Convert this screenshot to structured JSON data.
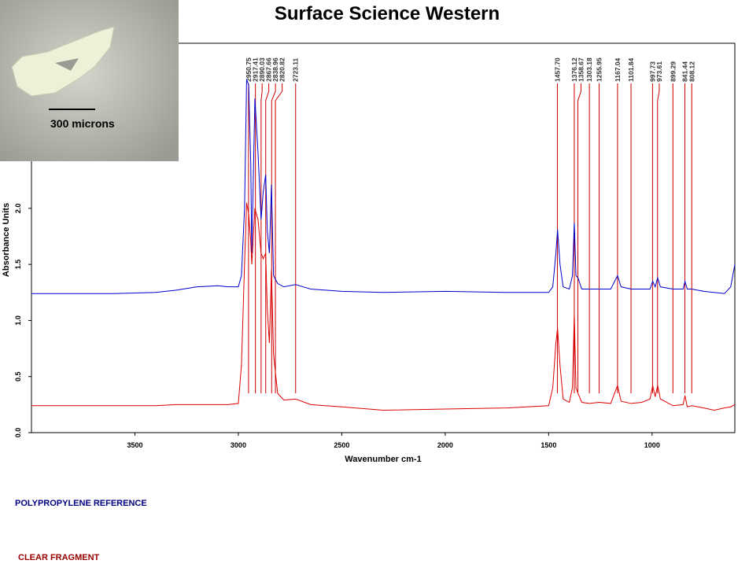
{
  "chart_data": {
    "type": "line",
    "title": "Surface Science Western",
    "x_label": "Wavenumber cm-1",
    "y_label": "Absorbance Units",
    "image_scale_label": "300 microns",
    "xlim": [
      4000,
      600
    ],
    "ylim": [
      0,
      3.5
    ],
    "xticks": [
      3500,
      3000,
      2500,
      2000,
      1500,
      1000
    ],
    "yticks": [
      {
        "value": 0,
        "label": "0.0"
      },
      0.5,
      {
        "value": 1,
        "label": "1.0"
      },
      1.5,
      {
        "value": 2,
        "label": "2.0"
      }
    ],
    "x": [
      4000,
      3800,
      3600,
      3400,
      3300,
      3200,
      3100,
      3050,
      3000,
      2985,
      2970,
      2960,
      2950,
      2940,
      2935,
      2920,
      2905,
      2890,
      2880,
      2868,
      2860,
      2850,
      2840,
      2830,
      2810,
      2780,
      2723,
      2650,
      2500,
      2300,
      2000,
      1700,
      1500,
      1480,
      1465,
      1457,
      1445,
      1430,
      1400,
      1385,
      1376,
      1368,
      1358,
      1340,
      1303,
      1256,
      1200,
      1167,
      1150,
      1101,
      1050,
      1010,
      997,
      985,
      973,
      960,
      899,
      850,
      841,
      830,
      808,
      750,
      700,
      650,
      620,
      600
    ],
    "series": [
      {
        "name": "POLYPROPYLENE REFERENCE",
        "color": "#0000cc",
        "legend_color": "#000080",
        "values": [
          1.24,
          1.24,
          1.24,
          1.25,
          1.27,
          1.3,
          1.31,
          1.3,
          1.3,
          1.4,
          2.0,
          3.15,
          3.1,
          2.4,
          1.6,
          2.98,
          2.5,
          1.9,
          2.14,
          2.3,
          1.8,
          1.6,
          2.21,
          1.4,
          1.33,
          1.3,
          1.32,
          1.28,
          1.26,
          1.25,
          1.26,
          1.25,
          1.25,
          1.3,
          1.6,
          1.81,
          1.5,
          1.3,
          1.28,
          1.4,
          1.87,
          1.4,
          1.38,
          1.28,
          1.28,
          1.28,
          1.28,
          1.4,
          1.3,
          1.28,
          1.28,
          1.28,
          1.35,
          1.3,
          1.38,
          1.3,
          1.28,
          1.28,
          1.35,
          1.28,
          1.28,
          1.26,
          1.25,
          1.24,
          1.3,
          1.5
        ]
      },
      {
        "name": "CLEAR FRAGMENT",
        "color": "#dd0000",
        "legend_color": "#990000",
        "values": [
          0.24,
          0.24,
          0.24,
          0.24,
          0.25,
          0.25,
          0.25,
          0.25,
          0.26,
          0.6,
          1.5,
          2.05,
          1.95,
          1.7,
          1.5,
          2.0,
          1.9,
          1.6,
          1.55,
          1.6,
          1.1,
          0.8,
          1.45,
          0.7,
          0.35,
          0.29,
          0.3,
          0.25,
          0.23,
          0.2,
          0.21,
          0.22,
          0.24,
          0.4,
          0.8,
          0.93,
          0.6,
          0.3,
          0.27,
          0.4,
          1.05,
          0.4,
          0.35,
          0.27,
          0.26,
          0.27,
          0.26,
          0.42,
          0.28,
          0.26,
          0.27,
          0.3,
          0.42,
          0.32,
          0.42,
          0.3,
          0.24,
          0.25,
          0.33,
          0.23,
          0.24,
          0.22,
          0.2,
          0.22,
          0.23,
          0.25
        ]
      }
    ],
    "peaks": [
      {
        "value": 2950.75,
        "label": "2950.75"
      },
      {
        "value": 2917.41,
        "label": "2917.41"
      },
      {
        "value": 2890.03,
        "label": "2890.03"
      },
      {
        "value": 2867.66,
        "label": "2867.66"
      },
      {
        "value": 2838.96,
        "label": "2838.96"
      },
      {
        "value": 2820.82,
        "label": "2820.82"
      },
      {
        "value": 2723.11,
        "label": "2723.11"
      },
      {
        "value": 1457.7,
        "label": "1457.70"
      },
      {
        "value": 1376.12,
        "label": "1376.12"
      },
      {
        "value": 1358.67,
        "label": "1358.67"
      },
      {
        "value": 1303.18,
        "label": "1303.18"
      },
      {
        "value": 1255.95,
        "label": "1255.95"
      },
      {
        "value": 1167.04,
        "label": "1167.04"
      },
      {
        "value": 1101.84,
        "label": "1101.84"
      },
      {
        "value": 997.73,
        "label": "997.73"
      },
      {
        "value": 973.61,
        "label": "973.61"
      },
      {
        "value": 899.29,
        "label": "899.29"
      },
      {
        "value": 841.44,
        "label": "841.44"
      },
      {
        "value": 808.12,
        "label": "808.12"
      }
    ]
  }
}
